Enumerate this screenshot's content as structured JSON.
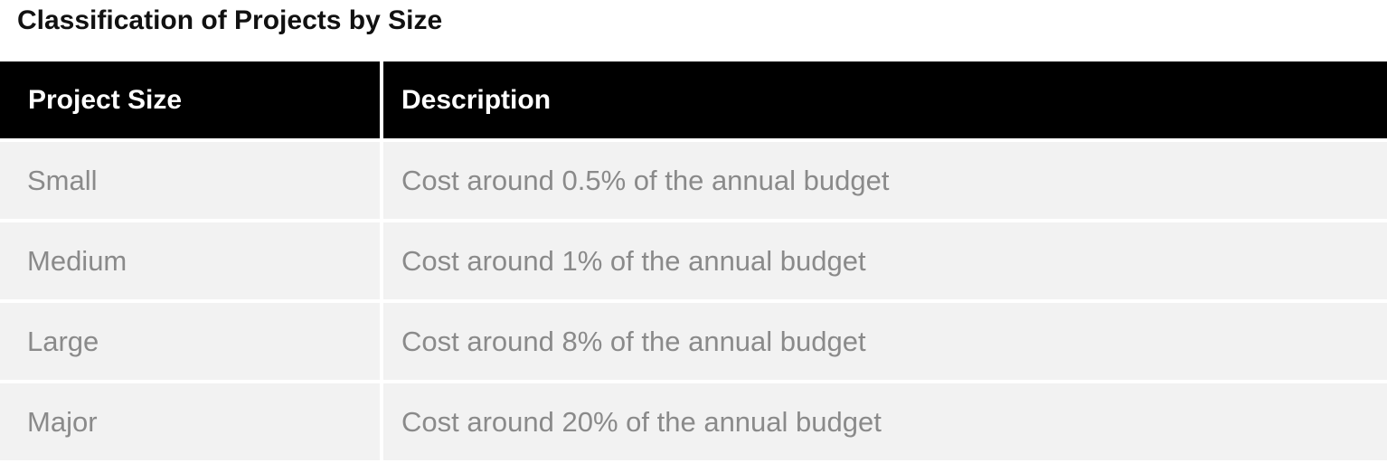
{
  "title": "Classification of Projects by Size",
  "table": {
    "headers": [
      "Project Size",
      "Description"
    ],
    "rows": [
      [
        "Small",
        "Cost around 0.5% of the annual budget"
      ],
      [
        "Medium",
        "Cost around 1% of the annual budget"
      ],
      [
        "Large",
        "Cost around 8% of the annual budget"
      ],
      [
        "Major",
        "Cost around 20% of the annual budget"
      ]
    ]
  },
  "colors": {
    "header_bg": "#000000",
    "header_text": "#ffffff",
    "row_bg": "#f2f2f2",
    "row_text": "#8a8a8a"
  }
}
